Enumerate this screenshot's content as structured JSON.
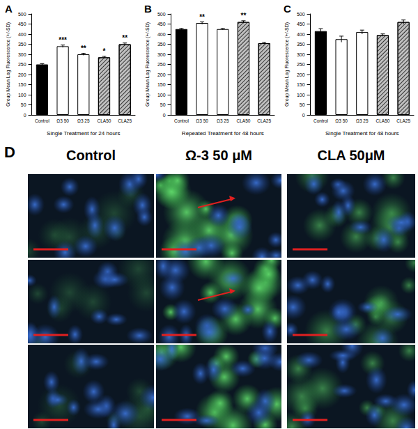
{
  "chart_data": [
    {
      "type": "bar",
      "title": "A",
      "x_label": "Single Treatment for 24 hours",
      "y_label": "Group Mean Log Fluorescence (+/-SD)",
      "categories": [
        "Control",
        "Ω3 50",
        "Ω3 25",
        "CLA50",
        "CLA25"
      ],
      "values": [
        250,
        340,
        300,
        285,
        350
      ],
      "errors": [
        4,
        6,
        5,
        5,
        6
      ],
      "annotations": [
        null,
        "***",
        "**",
        "*",
        "**"
      ],
      "colors": [
        "#000000",
        "#ffffff",
        "#ffffff",
        "#bfbfbf",
        "#bfbfbf"
      ],
      "ylim": [
        0,
        500
      ],
      "yticks": [
        0,
        50,
        100,
        150,
        200,
        250,
        300,
        350,
        400,
        450,
        500
      ]
    },
    {
      "type": "bar",
      "title": "B",
      "x_label": "Repeated Treatment for 48 hours",
      "y_label": "Group Mean Log Fluorescence (+/-SD)",
      "categories": [
        "Control",
        "Ω3 50",
        "Ω3 25",
        "CLA50",
        "CLA25"
      ],
      "values": [
        425,
        455,
        425,
        460,
        355
      ],
      "errors": [
        3,
        6,
        3,
        6,
        4
      ],
      "annotations": [
        null,
        "**",
        null,
        "**",
        null
      ],
      "colors": [
        "#000000",
        "#ffffff",
        "#ffffff",
        "#bfbfbf",
        "#bfbfbf"
      ],
      "ylim": [
        0,
        500
      ],
      "yticks": [
        0,
        50,
        100,
        150,
        200,
        250,
        300,
        350,
        400,
        450,
        500
      ]
    },
    {
      "type": "bar",
      "title": "C",
      "x_label": "Single Treatment for 48 hours",
      "y_label": "Group Mean Log Fluorescence (+/-SD)",
      "categories": [
        "Control",
        "Ω3 50",
        "Ω3 25",
        "CLA50",
        "CLA25"
      ],
      "values": [
        415,
        375,
        410,
        395,
        460
      ],
      "errors": [
        12,
        15,
        10,
        6,
        10
      ],
      "annotations": [
        null,
        null,
        null,
        null,
        null
      ],
      "colors": [
        "#000000",
        "#ffffff",
        "#ffffff",
        "#bfbfbf",
        "#bfbfbf"
      ],
      "ylim": [
        0,
        500
      ],
      "yticks": [
        0,
        50,
        100,
        150,
        200,
        250,
        300,
        350,
        400,
        450,
        500
      ]
    }
  ],
  "image_panel": {
    "label": "D",
    "columns": [
      "Control",
      "Ω-3 50 μM",
      "CLA 50μM"
    ]
  }
}
